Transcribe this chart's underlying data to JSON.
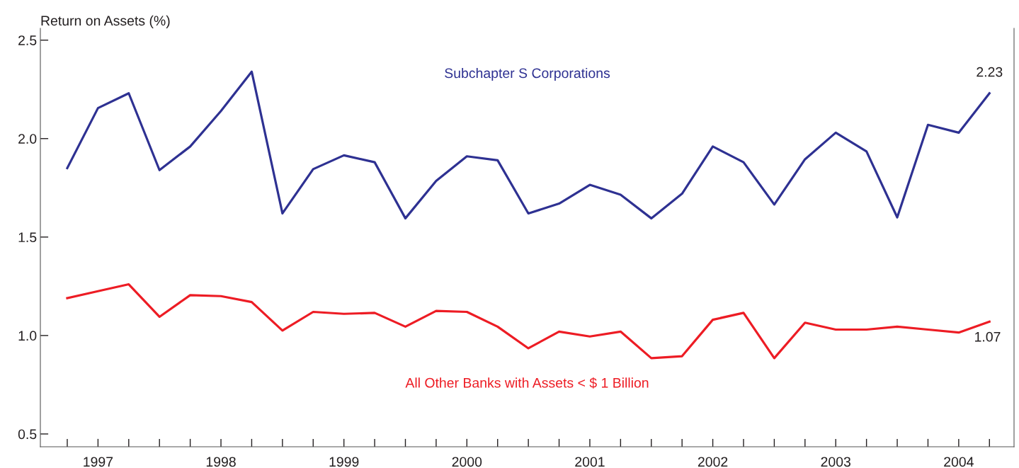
{
  "chart_data": {
    "type": "line",
    "ylabel": "Return on Assets (%)",
    "categories": [
      null,
      "1997",
      null,
      null,
      null,
      "1998",
      null,
      null,
      null,
      "1999",
      null,
      null,
      null,
      "2000",
      null,
      null,
      null,
      "2001",
      null,
      null,
      null,
      "2002",
      null,
      null,
      null,
      "2003",
      null,
      null,
      null,
      "2004",
      null
    ],
    "series": [
      {
        "name": "Subchapter S Corporations",
        "color": "#2e3192",
        "values": [
          1.85,
          2.155,
          2.23,
          1.84,
          1.96,
          2.14,
          2.34,
          1.62,
          1.845,
          1.915,
          1.88,
          1.595,
          1.785,
          1.91,
          1.89,
          1.62,
          1.67,
          1.765,
          1.715,
          1.595,
          1.72,
          1.96,
          1.88,
          1.665,
          1.895,
          2.03,
          1.935,
          1.6,
          2.07,
          2.03,
          2.23
        ],
        "value_labels": [
          null,
          null,
          null,
          null,
          null,
          null,
          null,
          null,
          null,
          null,
          null,
          null,
          null,
          null,
          null,
          null,
          null,
          null,
          null,
          null,
          null,
          null,
          null,
          null,
          null,
          null,
          null,
          null,
          null,
          null,
          "2.23"
        ]
      },
      {
        "name": "All Other Banks with Assets < $ 1 Billion",
        "color": "#ed1c24",
        "values": [
          1.19,
          1.225,
          1.26,
          1.095,
          1.205,
          1.2,
          1.17,
          1.025,
          1.12,
          1.11,
          1.115,
          1.045,
          1.125,
          1.12,
          1.045,
          0.935,
          1.02,
          0.995,
          1.02,
          0.885,
          0.895,
          1.08,
          1.115,
          0.885,
          1.065,
          1.03,
          1.03,
          1.045,
          1.03,
          1.015,
          1.07
        ],
        "value_labels": [
          null,
          null,
          null,
          null,
          null,
          null,
          null,
          null,
          null,
          null,
          null,
          null,
          null,
          null,
          null,
          null,
          null,
          null,
          null,
          null,
          null,
          null,
          null,
          null,
          null,
          null,
          null,
          null,
          null,
          null,
          "1.07"
        ]
      }
    ],
    "ylim": [
      0.435,
      2.56
    ],
    "yticks": [
      {
        "value": 0.5,
        "label": "0.5"
      },
      {
        "value": 1.0,
        "label": "1.0"
      },
      {
        "value": 1.5,
        "label": "1.5"
      },
      {
        "value": 2.0,
        "label": "2.0"
      },
      {
        "value": 2.5,
        "label": "2.5"
      }
    ],
    "grid": false,
    "legend": false,
    "marker": "none",
    "line_style": "solid"
  }
}
